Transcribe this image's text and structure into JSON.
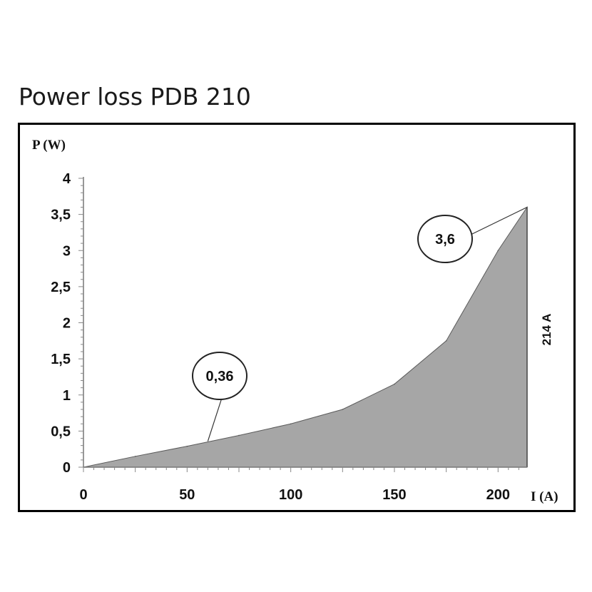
{
  "page_title": "Power loss PDB 210",
  "chart_data": {
    "type": "area",
    "title": "Power loss PDB 210",
    "xlabel": "I (A)",
    "ylabel": "P (W)",
    "xlim": [
      0,
      214
    ],
    "ylim": [
      0,
      4
    ],
    "x_ticks": [
      0,
      50,
      100,
      150,
      200
    ],
    "x_tick_labels": [
      "0",
      "50",
      "100",
      "150",
      "200"
    ],
    "y_ticks": [
      0,
      0.5,
      1,
      1.5,
      2,
      2.5,
      3,
      3.5,
      4
    ],
    "y_tick_labels": [
      "0",
      "0,5",
      "1",
      "1,5",
      "2",
      "2,5",
      "3",
      "3,5",
      "4"
    ],
    "series": [
      {
        "x": [
          0,
          25,
          50,
          75,
          100,
          125,
          150,
          175,
          200,
          214
        ],
        "y": [
          0,
          0.15,
          0.29,
          0.44,
          0.6,
          0.8,
          1.15,
          1.75,
          3.0,
          3.6
        ]
      }
    ],
    "fill_color": "#a6a6a6",
    "annotations": [
      {
        "text": "0,36",
        "x": 60,
        "y": 0.36
      },
      {
        "text": "3,6",
        "x": 214,
        "y": 3.6
      }
    ],
    "vertical_marker": {
      "x": 214,
      "label": "214 A"
    }
  }
}
